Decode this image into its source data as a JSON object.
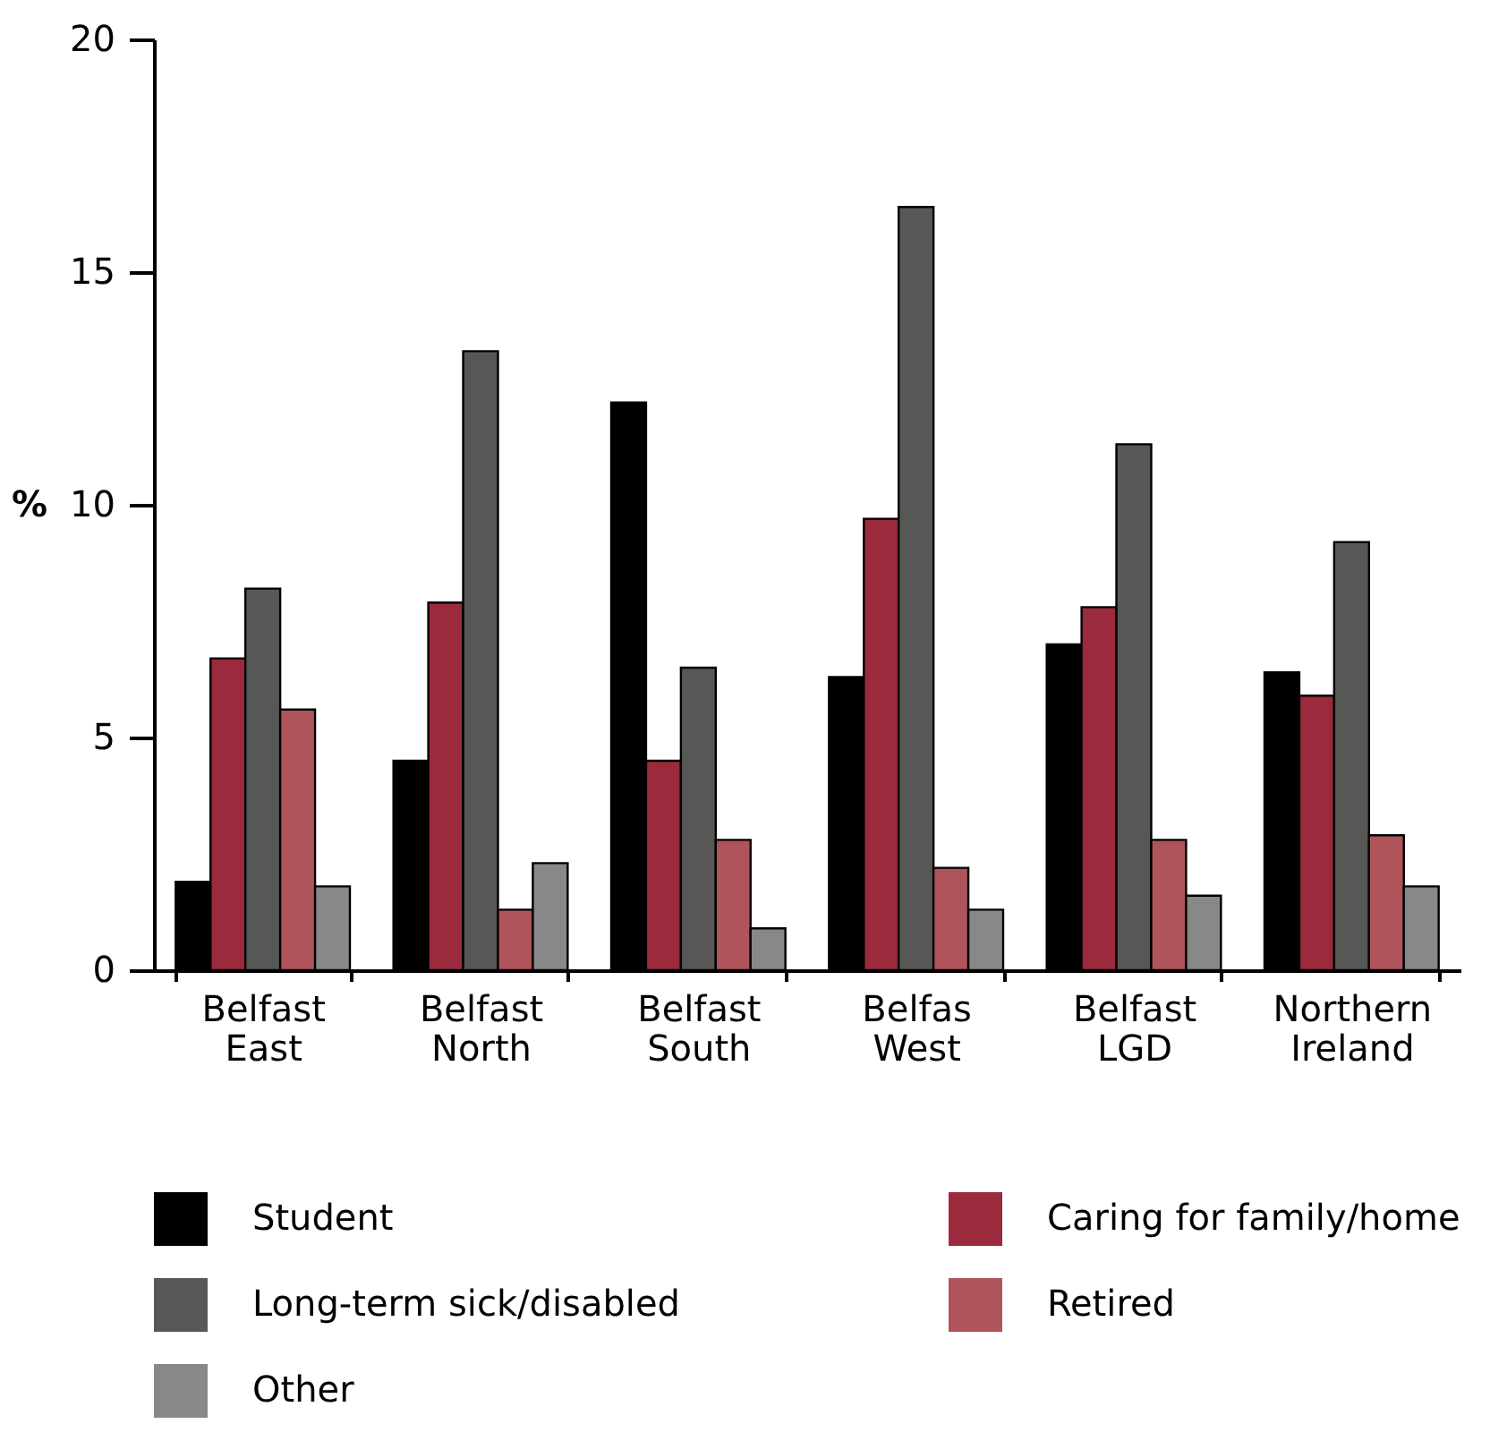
{
  "chart_data": {
    "type": "bar",
    "ylabel": "%",
    "categories": [
      "Belfast East",
      "Belfast North",
      "Belfast South",
      "Belfas West",
      "Belfast LGD",
      "Northern Ireland"
    ],
    "series": [
      {
        "name": "Student",
        "color": "#000000",
        "values": [
          1.9,
          4.5,
          12.2,
          6.3,
          7.0,
          6.4
        ]
      },
      {
        "name": "Caring for family/home",
        "color": "#9b2a3c",
        "values": [
          6.7,
          7.9,
          4.5,
          9.7,
          7.8,
          5.9
        ]
      },
      {
        "name": "Long-term sick/disabled",
        "color": "#575755",
        "values": [
          8.2,
          13.3,
          6.5,
          16.4,
          11.3,
          9.2
        ]
      },
      {
        "name": "Retired",
        "color": "#b0545c",
        "values": [
          5.6,
          1.3,
          2.8,
          2.2,
          2.8,
          2.9
        ]
      },
      {
        "name": "Other",
        "color": "#888888",
        "values": [
          1.8,
          2.3,
          0.9,
          1.3,
          1.6,
          1.8
        ]
      }
    ],
    "ylim": [
      0,
      20
    ],
    "yticks": [
      0,
      5,
      10,
      15,
      20
    ],
    "grid": false,
    "legend": "bottom"
  }
}
